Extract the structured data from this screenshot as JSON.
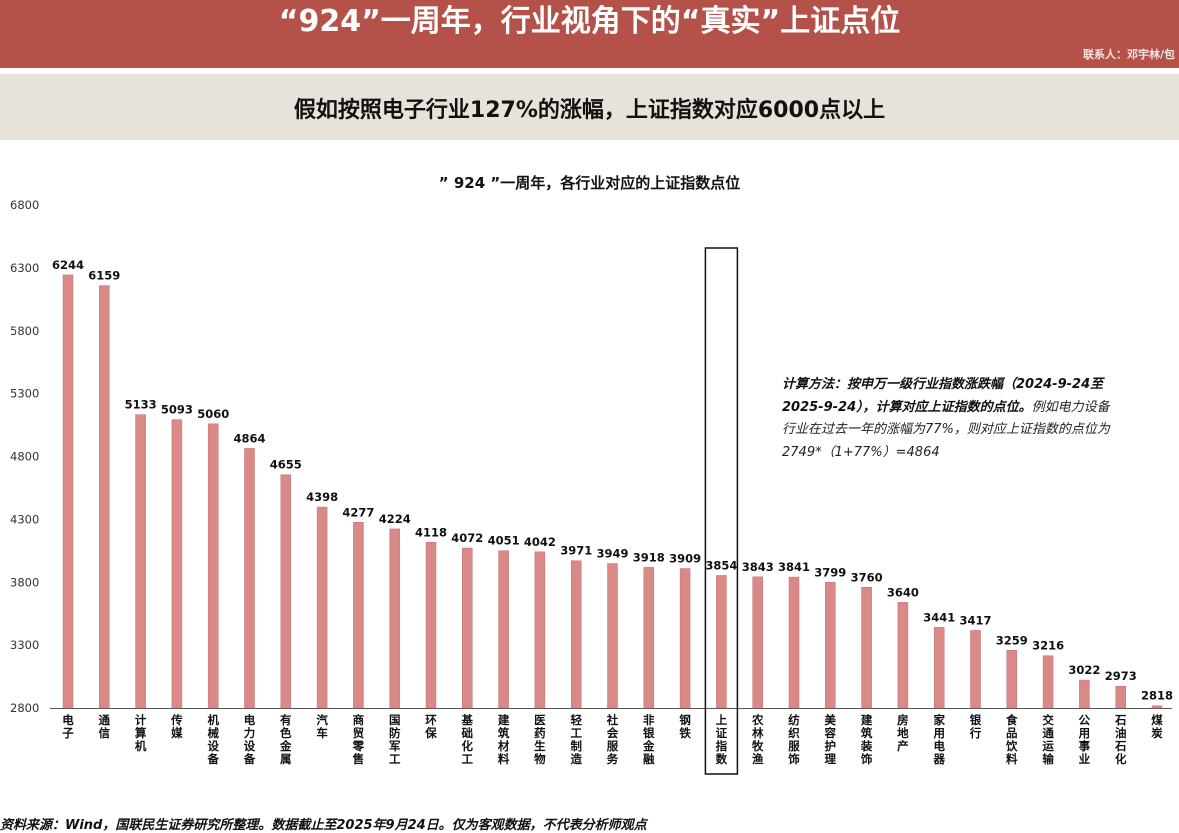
{
  "header": {
    "title": "“924”一周年，行业视角下的“真实”上证点位",
    "contact": "联系人：邓宇林/包"
  },
  "subheader": {
    "text": "假如按照电子行业127%的涨幅，上证指数对应6000点以上"
  },
  "method": {
    "bold": "计算方法：按申万一级行业指数涨跌幅（2024-9-24至2025-9-24），计算对应上证指数的点位。",
    "rest": "例如电力设备行业在过去一年的涨幅为77%，则对应上证指数的点位为2749*（1+77%）=4864"
  },
  "footer": {
    "text": "资料来源：Wind，国联民生证券研究所整理。数据截止至2025年9月24日。仅为客观数据，不代表分析师观点"
  },
  "colors": {
    "banner": "#b4524a",
    "bar": "#d98a88",
    "bar_stroke": "#c46f6c"
  },
  "chart_data": {
    "type": "bar",
    "title": "” 924 ”一周年，各行业对应的上证指数点位",
    "ylim": [
      2800,
      6800
    ],
    "yticks": [
      2800,
      3300,
      3800,
      4300,
      4800,
      5300,
      5800,
      6300,
      6800
    ],
    "grid": false,
    "highlight": "上证指数",
    "categories": [
      "电子",
      "通信",
      "计算机",
      "传媒",
      "机械设备",
      "电力设备",
      "有色金属",
      "汽车",
      "商贸零售",
      "国防军工",
      "环保",
      "基础化工",
      "建筑材料",
      "医药生物",
      "轻工制造",
      "社会服务",
      "非银金融",
      "钢铁",
      "上证指数",
      "农林牧渔",
      "纺织服饰",
      "美容护理",
      "建筑装饰",
      "房地产",
      "家用电器",
      "银行",
      "食品饮料",
      "交通运输",
      "公用事业",
      "石油石化",
      "煤炭"
    ],
    "values": [
      6244,
      6159,
      5133,
      5093,
      5060,
      4864,
      4655,
      4398,
      4277,
      4224,
      4118,
      4072,
      4051,
      4042,
      3971,
      3949,
      3918,
      3909,
      3854,
      3843,
      3841,
      3799,
      3760,
      3640,
      3441,
      3417,
      3259,
      3216,
      3022,
      2973,
      2818
    ]
  }
}
